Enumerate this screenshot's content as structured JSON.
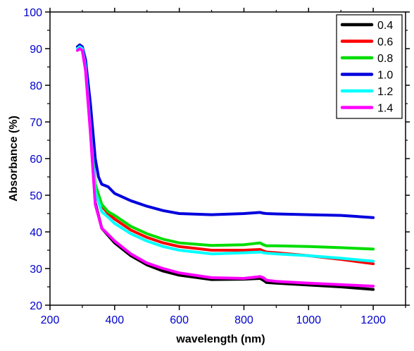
{
  "chart_data": {
    "type": "line",
    "xlabel": "wavelength (nm)",
    "ylabel": "Absorbance (%)",
    "xlim": [
      200,
      1300
    ],
    "ylim": [
      20,
      100
    ],
    "x_ticks": [
      200,
      400,
      600,
      800,
      1000,
      1200
    ],
    "y_ticks": [
      20,
      30,
      40,
      50,
      60,
      70,
      80,
      90,
      100
    ],
    "grid": false,
    "legend_position": "top-right",
    "tick_label_color": "#0000cc",
    "series": [
      {
        "name": "0.4",
        "color": "#000000",
        "x": [
          285,
          292,
          300,
          310,
          325,
          340,
          360,
          380,
          400,
          450,
          500,
          550,
          600,
          700,
          800,
          850,
          860,
          870,
          900,
          1000,
          1100,
          1200
        ],
        "y": [
          90.5,
          91,
          90.5,
          85,
          68,
          48,
          41,
          39,
          37,
          33.5,
          31,
          29.3,
          28.2,
          27,
          27.1,
          27.3,
          26.8,
          26.2,
          26,
          25.5,
          25,
          24.3
        ]
      },
      {
        "name": "0.6",
        "color": "#ff0000",
        "x": [
          285,
          292,
          300,
          310,
          325,
          340,
          360,
          380,
          400,
          450,
          500,
          550,
          600,
          700,
          800,
          850,
          860,
          870,
          900,
          1000,
          1100,
          1200
        ],
        "y": [
          90.5,
          91,
          90.5,
          86,
          70,
          52,
          47,
          45,
          43.5,
          40.5,
          38.5,
          37,
          36,
          35,
          35,
          35.2,
          34.8,
          34.5,
          34.3,
          33.5,
          32.5,
          31.3
        ]
      },
      {
        "name": "0.8",
        "color": "#00dd00",
        "x": [
          285,
          292,
          300,
          310,
          325,
          340,
          360,
          380,
          400,
          450,
          500,
          550,
          600,
          700,
          800,
          850,
          860,
          870,
          900,
          1000,
          1100,
          1200
        ],
        "y": [
          90.5,
          91,
          90.5,
          86,
          70,
          53,
          47.5,
          45.5,
          44.5,
          41.5,
          39.5,
          38,
          37,
          36.3,
          36.5,
          37,
          36.5,
          36.2,
          36.2,
          36,
          35.7,
          35.3
        ]
      },
      {
        "name": "1.0",
        "color": "#0000dd",
        "x": [
          285,
          292,
          300,
          310,
          325,
          340,
          350,
          360,
          380,
          400,
          450,
          500,
          550,
          600,
          700,
          800,
          850,
          860,
          870,
          900,
          1000,
          1100,
          1200
        ],
        "y": [
          90.5,
          91,
          90.5,
          87,
          75,
          60,
          55,
          53,
          52.3,
          50.5,
          48.5,
          47,
          45.8,
          45,
          44.7,
          45,
          45.3,
          45.1,
          45,
          44.9,
          44.7,
          44.5,
          43.9
        ]
      },
      {
        "name": "1.2",
        "color": "#00ffff",
        "x": [
          285,
          292,
          300,
          310,
          325,
          340,
          360,
          380,
          400,
          450,
          500,
          550,
          600,
          700,
          800,
          850,
          860,
          870,
          900,
          1000,
          1100,
          1200
        ],
        "y": [
          90,
          90.5,
          90,
          85,
          68,
          51,
          45.5,
          44,
          42.3,
          39.5,
          37.5,
          36,
          35,
          34,
          34.3,
          34.5,
          34.3,
          34.2,
          34,
          33.5,
          32.8,
          32
        ]
      },
      {
        "name": "1.4",
        "color": "#ff00ff",
        "x": [
          285,
          292,
          300,
          310,
          325,
          340,
          360,
          380,
          400,
          450,
          500,
          550,
          600,
          700,
          800,
          850,
          860,
          870,
          900,
          1000,
          1100,
          1200
        ],
        "y": [
          89.5,
          90,
          89.5,
          84,
          67,
          47.5,
          41,
          39.3,
          37.5,
          34,
          31.5,
          30,
          28.8,
          27.5,
          27.3,
          27.8,
          27.5,
          26.8,
          26.5,
          26,
          25.6,
          25.2
        ]
      }
    ]
  }
}
